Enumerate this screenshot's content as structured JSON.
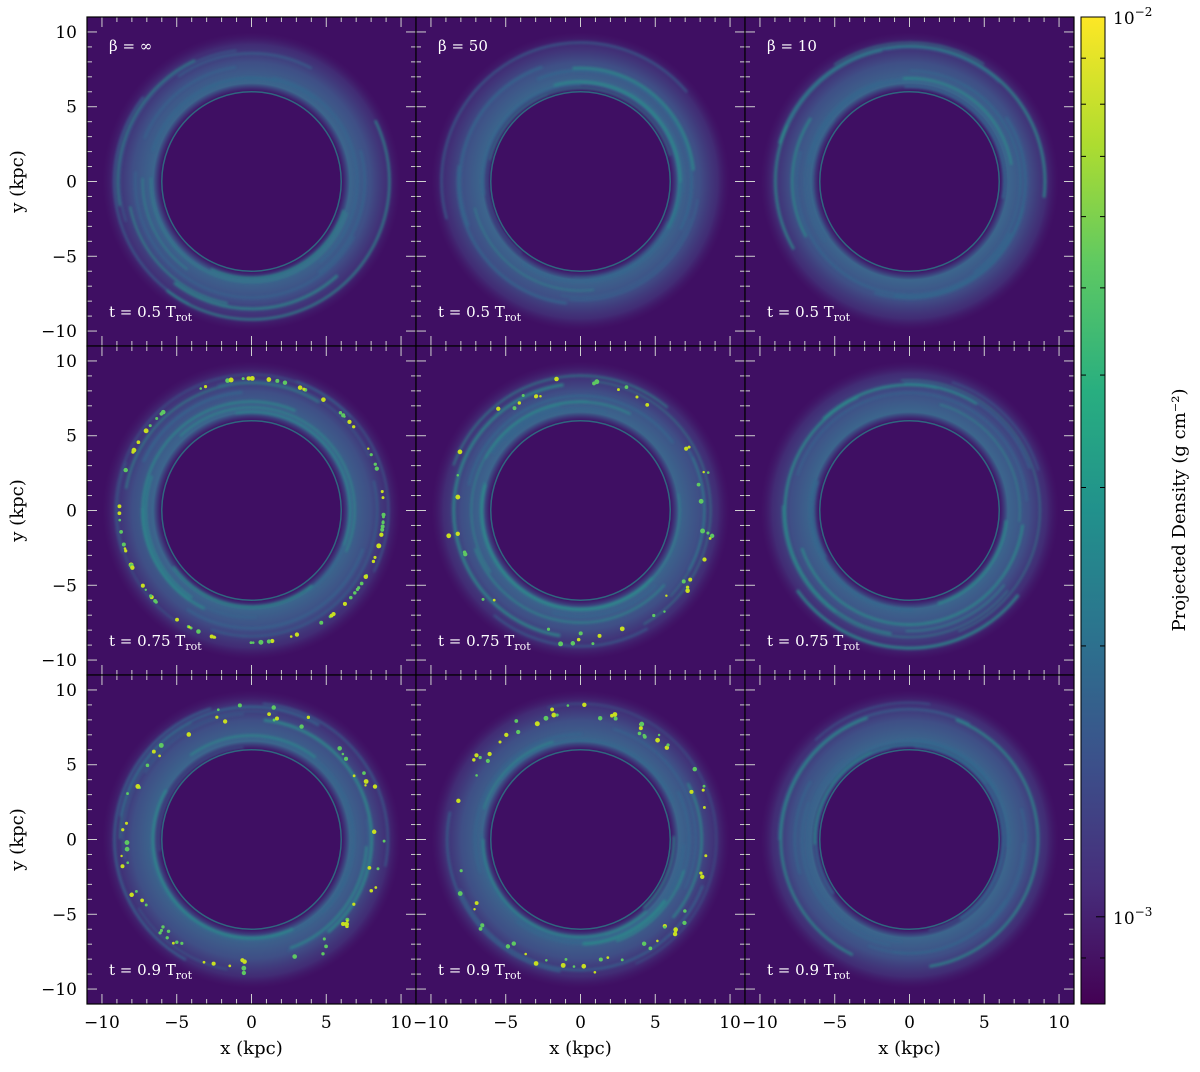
{
  "figure": {
    "beta_labels": [
      "β = ∞",
      "β = 50",
      "β = 10"
    ],
    "time_labels": [
      "t = 0.5 T",
      "t = 0.75 T",
      "t = 0.9 T"
    ],
    "time_subscript": "rot",
    "row_times": [
      0.5,
      0.75,
      0.9
    ],
    "column_betas": [
      "∞",
      "50",
      "10"
    ]
  },
  "axes": {
    "xlabel": "x (kpc)",
    "ylabel": "y (kpc)",
    "xlim": [
      -11,
      11
    ],
    "ylim": [
      -11,
      11
    ],
    "x_ticks": [
      -10,
      -5,
      0,
      5,
      10
    ],
    "y_ticks": [
      -10,
      -5,
      0,
      5,
      10
    ],
    "x_tick_labels": [
      "−10",
      "−5",
      "0",
      "5",
      "10"
    ],
    "y_tick_labels": [
      "−10",
      "−5",
      "0",
      "5",
      "10"
    ]
  },
  "colorbar": {
    "label": "Projected Density (g cm⁻²)",
    "scale": "log",
    "range": [
      0.0008,
      0.01
    ],
    "tick_labels": [
      {
        "value": 0.01,
        "base": "10",
        "exp": "−2"
      },
      {
        "value": 0.001,
        "base": "10",
        "exp": "−3"
      }
    ],
    "colormap": "viridis",
    "colors": [
      "#440154",
      "#472d7b",
      "#3b528b",
      "#2c728e",
      "#21918c",
      "#28ae80",
      "#5ec962",
      "#addc30",
      "#fde725"
    ]
  },
  "background_color": "#3f0f63",
  "disk": {
    "inner_radius_kpc": 6,
    "outer_radius_kpc": 9.5
  }
}
